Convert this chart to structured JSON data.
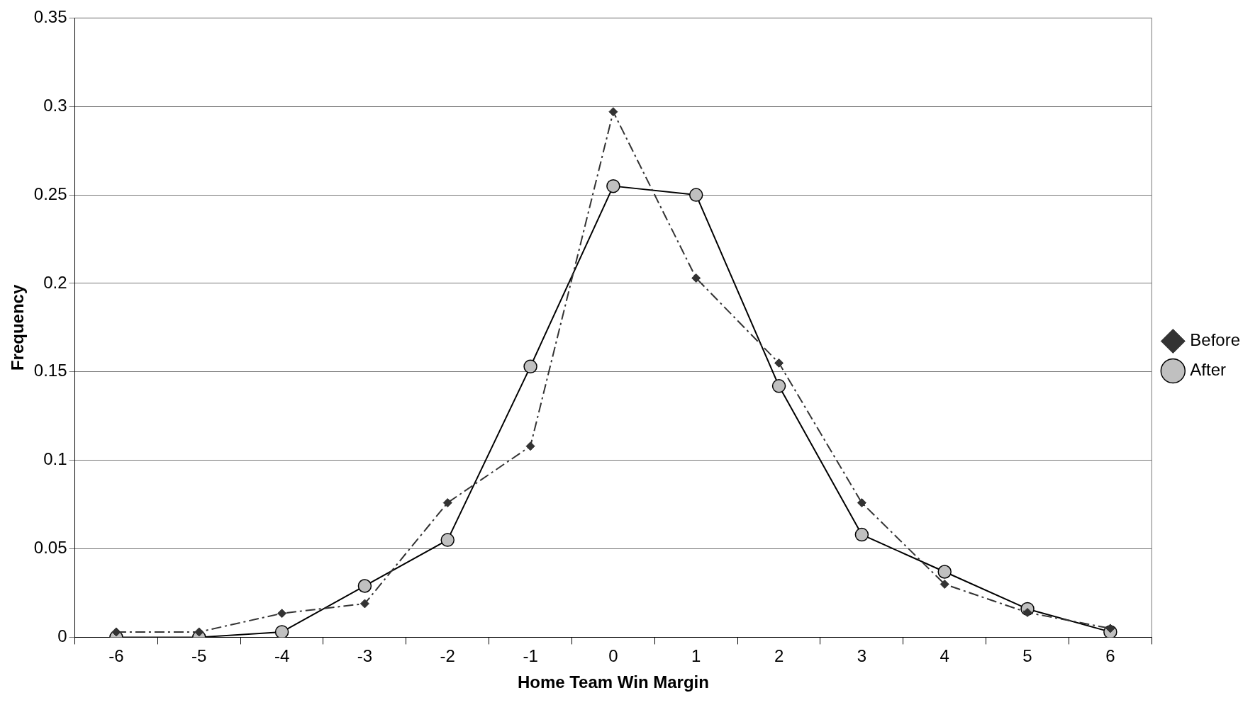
{
  "chart_data": {
    "type": "line",
    "xlabel": "Home Team Win Margin",
    "ylabel": "Frequency",
    "categories": [
      "-6",
      "-5",
      "-4",
      "-3",
      "-2",
      "-1",
      "0",
      "1",
      "2",
      "3",
      "4",
      "5",
      "6"
    ],
    "ylim": [
      0,
      0.35
    ],
    "yticks": [
      0,
      0.05,
      0.1,
      0.15,
      0.2,
      0.25,
      0.3,
      0.35
    ],
    "grid": "y",
    "legend": "right",
    "series": [
      {
        "name": "Before",
        "color": "#333333",
        "marker": "diamond",
        "line_style": "dashed",
        "values": [
          0.003,
          0.003,
          0.0135,
          0.019,
          0.076,
          0.108,
          0.297,
          0.203,
          0.155,
          0.076,
          0.03,
          0.014,
          0.005
        ]
      },
      {
        "name": "After",
        "color": "#000000",
        "marker": "circle",
        "line_style": "solid",
        "values": [
          0,
          0,
          0.003,
          0.029,
          0.055,
          0.153,
          0.255,
          0.25,
          0.142,
          0.058,
          0.037,
          0.016,
          0.003
        ]
      }
    ]
  }
}
